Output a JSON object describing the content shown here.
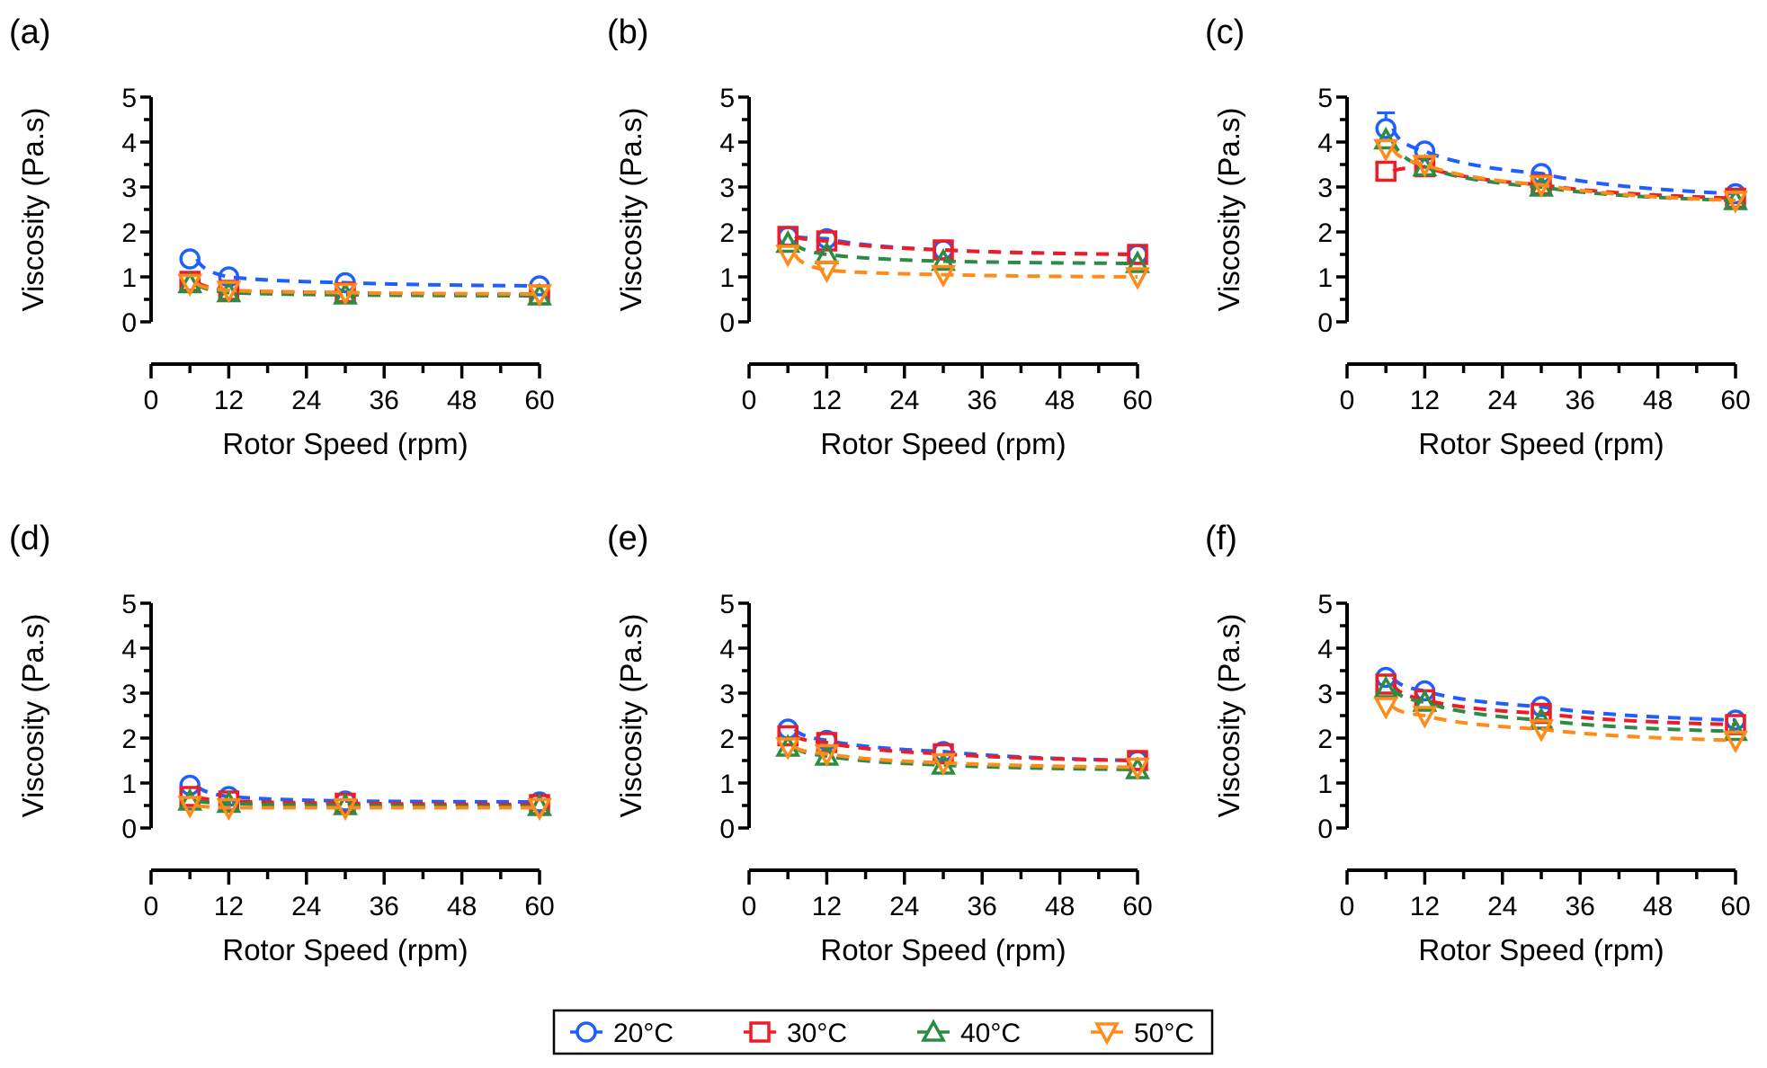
{
  "figure": {
    "legend": {
      "entries": [
        {
          "label": "20°C",
          "marker": "circle",
          "color": "#1f5fff"
        },
        {
          "label": "30°C",
          "marker": "square",
          "color": "#ee1c25"
        },
        {
          "label": "40°C",
          "marker": "triangle-up",
          "color": "#2e8b45"
        },
        {
          "label": "50°C",
          "marker": "triangle-down",
          "color": "#ff8c1a"
        }
      ],
      "placement": "bottom-center"
    }
  },
  "chart_data": [
    {
      "panel": "(a)",
      "type": "scatter",
      "xlabel": "Rotor Speed (rpm)",
      "ylabel": "Viscosity (Pa.s)",
      "xlim": [
        0,
        60
      ],
      "ylim": [
        0,
        5
      ],
      "xticks": [
        "0",
        "12",
        "24",
        "36",
        "48",
        "60"
      ],
      "yticks": [
        "0",
        "1",
        "2",
        "3",
        "4",
        "5"
      ],
      "x": [
        6,
        12,
        30,
        60
      ],
      "series": [
        {
          "name": "20°C",
          "values": [
            1.4,
            1.0,
            0.87,
            0.8
          ]
        },
        {
          "name": "30°C",
          "values": [
            0.9,
            0.7,
            0.65,
            0.6
          ]
        },
        {
          "name": "40°C",
          "values": [
            0.85,
            0.65,
            0.6,
            0.58
          ]
        },
        {
          "name": "50°C",
          "values": [
            0.85,
            0.7,
            0.65,
            0.62
          ]
        }
      ],
      "fit_lines": "dashed",
      "grid": false
    },
    {
      "panel": "(b)",
      "type": "scatter",
      "xlabel": "Rotor Speed (rpm)",
      "ylabel": "Viscosity (Pa.s)",
      "xlim": [
        0,
        60
      ],
      "ylim": [
        0,
        5
      ],
      "xticks": [
        "0",
        "12",
        "24",
        "36",
        "48",
        "60"
      ],
      "yticks": [
        "0",
        "1",
        "2",
        "3",
        "4",
        "5"
      ],
      "x": [
        6,
        12,
        30,
        60
      ],
      "series": [
        {
          "name": "20°C",
          "values": [
            1.9,
            1.85,
            1.6,
            1.5
          ]
        },
        {
          "name": "30°C",
          "values": [
            1.9,
            1.8,
            1.6,
            1.5
          ]
        },
        {
          "name": "40°C",
          "values": [
            1.75,
            1.5,
            1.35,
            1.3
          ]
        },
        {
          "name": "50°C",
          "values": [
            1.5,
            1.15,
            1.05,
            1.0
          ]
        }
      ],
      "fit_lines": "dashed",
      "grid": false
    },
    {
      "panel": "(c)",
      "type": "scatter",
      "xlabel": "Rotor Speed (rpm)",
      "ylabel": "Viscosity (Pa.s)",
      "xlim": [
        0,
        60
      ],
      "ylim": [
        0,
        5
      ],
      "xticks": [
        "0",
        "12",
        "24",
        "36",
        "48",
        "60"
      ],
      "yticks": [
        "0",
        "1",
        "2",
        "3",
        "4",
        "5"
      ],
      "x": [
        6,
        12,
        30,
        60
      ],
      "series": [
        {
          "name": "20°C",
          "values": [
            4.3,
            3.8,
            3.3,
            2.85
          ],
          "error": [
            0.35,
            0,
            0,
            0
          ]
        },
        {
          "name": "30°C",
          "values": [
            3.35,
            3.45,
            3.05,
            2.75
          ]
        },
        {
          "name": "40°C",
          "values": [
            4.05,
            3.45,
            3.0,
            2.7
          ]
        },
        {
          "name": "50°C",
          "values": [
            3.85,
            3.5,
            3.05,
            2.7
          ]
        }
      ],
      "fit_lines": "dashed",
      "grid": false
    },
    {
      "panel": "(d)",
      "type": "scatter",
      "xlabel": "Rotor Speed (rpm)",
      "ylabel": "Viscosity (Pa.s)",
      "xlim": [
        0,
        60
      ],
      "ylim": [
        0,
        5
      ],
      "xticks": [
        "0",
        "12",
        "24",
        "36",
        "48",
        "60"
      ],
      "yticks": [
        "0",
        "1",
        "2",
        "3",
        "4",
        "5"
      ],
      "x": [
        6,
        12,
        30,
        60
      ],
      "series": [
        {
          "name": "20°C",
          "values": [
            0.95,
            0.7,
            0.6,
            0.58
          ]
        },
        {
          "name": "30°C",
          "values": [
            0.7,
            0.6,
            0.55,
            0.52
          ]
        },
        {
          "name": "40°C",
          "values": [
            0.6,
            0.55,
            0.5,
            0.48
          ]
        },
        {
          "name": "50°C",
          "values": [
            0.5,
            0.45,
            0.45,
            0.45
          ]
        }
      ],
      "fit_lines": "dashed",
      "grid": false
    },
    {
      "panel": "(e)",
      "type": "scatter",
      "xlabel": "Rotor Speed (rpm)",
      "ylabel": "Viscosity (Pa.s)",
      "xlim": [
        0,
        60
      ],
      "ylim": [
        0,
        5
      ],
      "xticks": [
        "0",
        "12",
        "24",
        "36",
        "48",
        "60"
      ],
      "yticks": [
        "0",
        "1",
        "2",
        "3",
        "4",
        "5"
      ],
      "x": [
        6,
        12,
        30,
        60
      ],
      "series": [
        {
          "name": "20°C",
          "values": [
            2.2,
            1.95,
            1.7,
            1.5
          ]
        },
        {
          "name": "30°C",
          "values": [
            2.05,
            1.9,
            1.65,
            1.5
          ]
        },
        {
          "name": "40°C",
          "values": [
            1.8,
            1.6,
            1.4,
            1.3
          ]
        },
        {
          "name": "50°C",
          "values": [
            1.8,
            1.65,
            1.45,
            1.35
          ]
        }
      ],
      "fit_lines": "dashed",
      "grid": false
    },
    {
      "panel": "(f)",
      "type": "scatter",
      "xlabel": "Rotor Speed (rpm)",
      "ylabel": "Viscosity (Pa.s)",
      "xlim": [
        0,
        60
      ],
      "ylim": [
        0,
        5
      ],
      "xticks": [
        "0",
        "12",
        "24",
        "36",
        "48",
        "60"
      ],
      "yticks": [
        "0",
        "1",
        "2",
        "3",
        "4",
        "5"
      ],
      "x": [
        6,
        12,
        30,
        60
      ],
      "series": [
        {
          "name": "20°C",
          "values": [
            3.35,
            3.05,
            2.7,
            2.4
          ]
        },
        {
          "name": "30°C",
          "values": [
            3.2,
            2.85,
            2.55,
            2.3
          ]
        },
        {
          "name": "40°C",
          "values": [
            3.1,
            2.8,
            2.4,
            2.15
          ]
        },
        {
          "name": "50°C",
          "values": [
            2.7,
            2.5,
            2.2,
            1.95
          ]
        }
      ],
      "fit_lines": "dashed",
      "grid": false
    }
  ]
}
